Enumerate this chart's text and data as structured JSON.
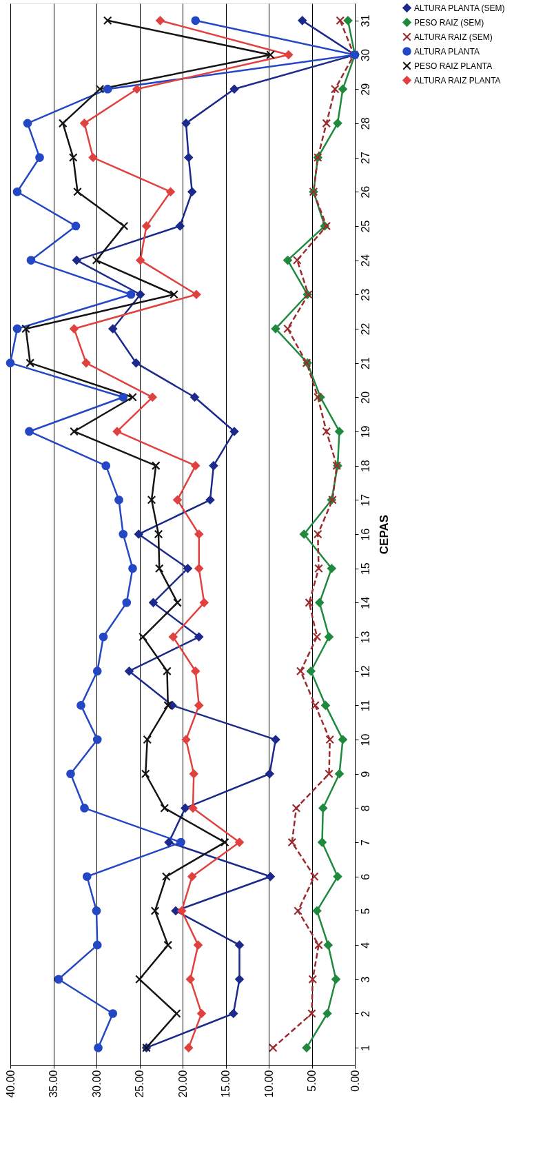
{
  "chart_data": {
    "type": "line",
    "orientation": "horizontal",
    "ylabel": "CEPAS",
    "categories": [
      "31",
      "30",
      "29",
      "28",
      "27",
      "26",
      "25",
      "24",
      "23",
      "22",
      "21",
      "20",
      "19",
      "18",
      "17",
      "16",
      "15",
      "14",
      "13",
      "12",
      "11",
      "10",
      "9",
      "8",
      "7",
      "6",
      "5",
      "4",
      "3",
      "2",
      "1"
    ],
    "xlim": [
      40,
      0
    ],
    "xticks": [
      {
        "value": 40,
        "label": "40.00"
      },
      {
        "value": 35,
        "label": "35.00"
      },
      {
        "value": 30,
        "label": "30.00"
      },
      {
        "value": 25,
        "label": "25.00"
      },
      {
        "value": 20,
        "label": "20.00"
      },
      {
        "value": 15,
        "label": "15.00"
      },
      {
        "value": 10,
        "label": "10.00"
      },
      {
        "value": 5,
        "label": "5.00"
      },
      {
        "value": 0,
        "label": "0.00"
      }
    ],
    "grid": "x",
    "legend": "right",
    "series": [
      {
        "name": "ALTURA PLANTA (SEM)",
        "color": "#1c2a8c",
        "marker": "diamond",
        "line_style": "solid",
        "values": [
          6.1,
          0.0,
          14.0,
          19.6,
          19.3,
          18.9,
          20.3,
          32.3,
          24.9,
          28.1,
          25.4,
          18.6,
          14.0,
          16.4,
          16.8,
          25.1,
          19.4,
          23.4,
          18.1,
          26.2,
          21.2,
          9.2,
          9.9,
          19.7,
          21.6,
          9.8,
          20.8,
          13.4,
          13.4,
          14.1,
          24.2
        ]
      },
      {
        "name": "PESO RAIZ (SEM)",
        "color": "#1f8a3e",
        "marker": "diamond",
        "line_style": "solid",
        "values": [
          0.8,
          0.0,
          1.4,
          2.0,
          4.3,
          4.8,
          3.5,
          7.8,
          5.5,
          9.2,
          5.5,
          4.0,
          1.8,
          2.0,
          2.7,
          5.9,
          2.7,
          4.1,
          3.0,
          5.1,
          3.4,
          1.4,
          1.8,
          3.7,
          3.8,
          2.0,
          4.4,
          3.1,
          2.2,
          3.2,
          5.6
        ]
      },
      {
        "name": "ALTURA RAIZ (SEM)",
        "color": "#9a2b2e",
        "marker": "cross",
        "line_style": "dashed",
        "values": [
          1.7,
          0.1,
          2.3,
          3.3,
          4.3,
          4.8,
          3.3,
          6.7,
          5.4,
          7.8,
          5.6,
          4.3,
          3.3,
          2.1,
          2.6,
          4.3,
          4.2,
          5.3,
          4.4,
          6.3,
          4.6,
          2.9,
          3.0,
          6.8,
          7.3,
          4.7,
          6.6,
          4.2,
          4.9,
          5.0,
          9.5
        ]
      },
      {
        "name": "ALTURA PLANTA",
        "color": "#2447c4",
        "marker": "circle",
        "line_style": "solid",
        "values": [
          18.5,
          0.0,
          28.7,
          38.0,
          36.6,
          39.2,
          32.4,
          37.6,
          26.0,
          39.2,
          40.0,
          26.9,
          37.8,
          28.9,
          27.4,
          26.9,
          25.8,
          26.5,
          29.2,
          29.9,
          31.8,
          29.9,
          33.0,
          31.4,
          20.2,
          31.1,
          30.0,
          29.9,
          34.4,
          28.1,
          29.8
        ]
      },
      {
        "name": "PESO RAIZ PLANTA",
        "color": "#141414",
        "marker": "cross",
        "line_style": "solid",
        "values": [
          28.7,
          9.8,
          29.6,
          33.9,
          32.7,
          32.2,
          26.8,
          30.0,
          21.0,
          38.2,
          37.7,
          25.8,
          32.6,
          23.1,
          23.6,
          22.8,
          22.7,
          20.6,
          24.6,
          21.8,
          21.7,
          24.1,
          24.3,
          22.1,
          15.1,
          21.9,
          23.2,
          21.7,
          25.0,
          20.7,
          24.2
        ]
      },
      {
        "name": "ALTURA RAIZ PLANTA",
        "color": "#e0423f",
        "marker": "diamond",
        "line_style": "solid",
        "values": [
          22.6,
          7.7,
          25.3,
          31.4,
          30.4,
          21.4,
          24.2,
          24.9,
          18.4,
          32.6,
          31.2,
          23.5,
          27.6,
          18.5,
          20.6,
          18.1,
          18.1,
          17.5,
          21.1,
          18.5,
          18.1,
          19.6,
          18.7,
          18.8,
          13.4,
          18.9,
          20.1,
          18.2,
          19.1,
          17.8,
          19.3
        ]
      }
    ]
  }
}
